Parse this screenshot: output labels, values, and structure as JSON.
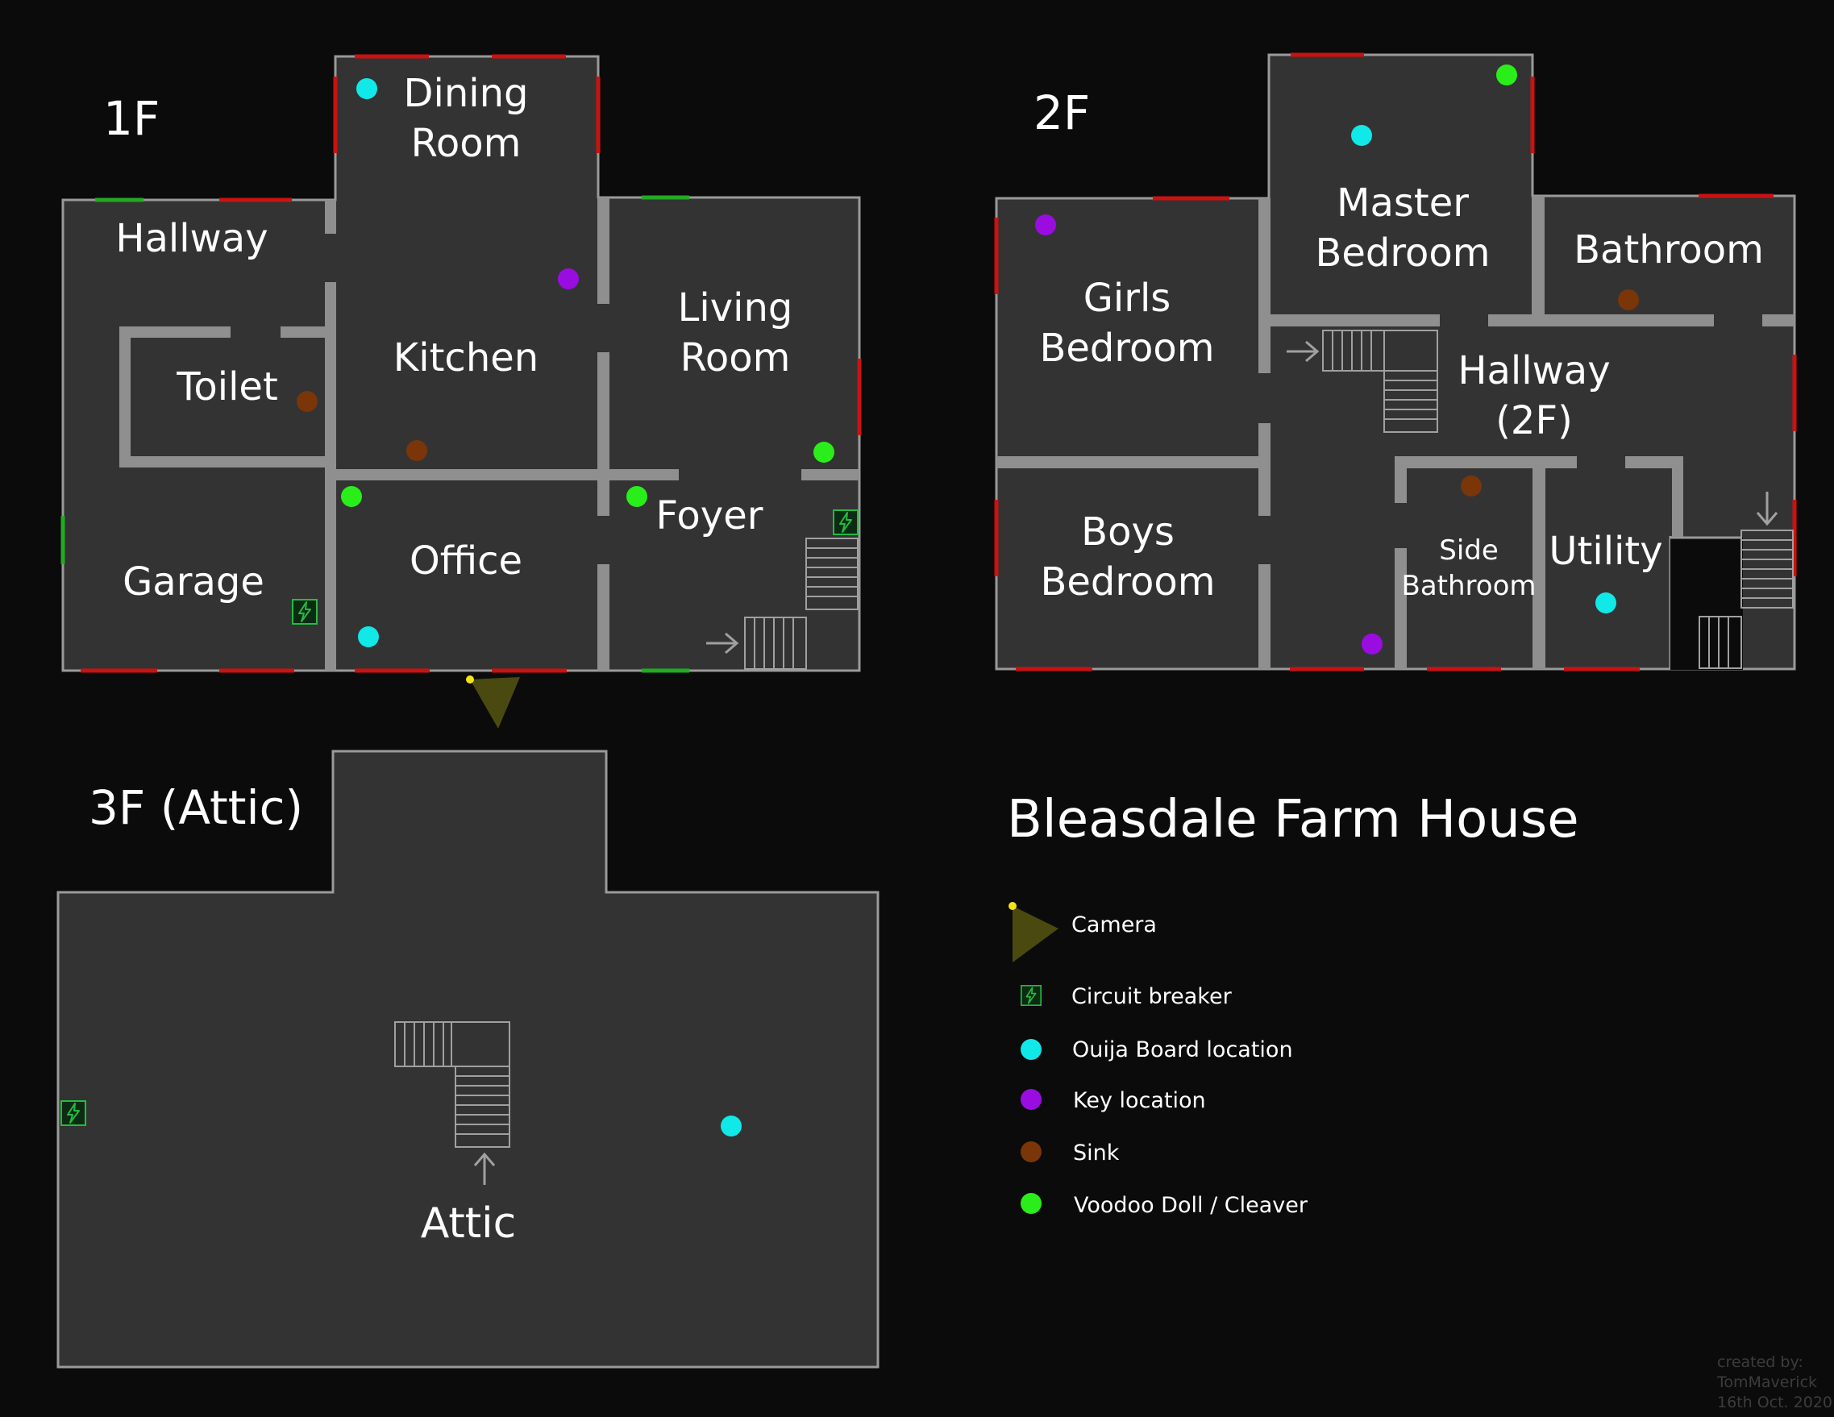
{
  "title": "Bleasdale Farm House",
  "floors": {
    "f1": "1F",
    "f2": "2F",
    "f3": "3F (Attic)"
  },
  "rooms": {
    "f1": {
      "dining_1": "Dining",
      "dining_2": "Room",
      "hallway": "Hallway",
      "toilet": "Toilet",
      "kitchen": "Kitchen",
      "living_1": "Living",
      "living_2": "Room",
      "foyer": "Foyer",
      "garage": "Garage",
      "office": "Office"
    },
    "f2": {
      "master_1": "Master",
      "master_2": "Bedroom",
      "bathroom": "Bathroom",
      "girls_1": "Girls",
      "girls_2": "Bedroom",
      "hallway_1": "Hallway",
      "hallway_2": "(2F)",
      "boys_1": "Boys",
      "boys_2": "Bedroom",
      "side_1": "Side",
      "side_2": "Bathroom",
      "utility": "Utility"
    },
    "f3": {
      "attic": "Attic"
    }
  },
  "legend": [
    {
      "key": "camera",
      "label": "Camera",
      "icon": "camera-icon"
    },
    {
      "key": "breaker",
      "label": "Circuit breaker",
      "icon": "lightning-icon"
    },
    {
      "key": "ouija",
      "label": "Ouija Board location",
      "icon": "dot-icon"
    },
    {
      "key": "key",
      "label": "Key location",
      "icon": "dot-icon"
    },
    {
      "key": "sink",
      "label": "Sink",
      "icon": "dot-icon"
    },
    {
      "key": "voodoo",
      "label": "Voodoo Doll / Cleaver",
      "icon": "dot-icon"
    }
  ],
  "credit": {
    "line1": "created by:",
    "line2": "TomMaverick",
    "line3": "16th Oct. 2020"
  },
  "colors": {
    "background": "#0b0b0b",
    "floor": "#333333",
    "wall": "#8f8f8f",
    "door": "#cc1111",
    "window": "#22aa22",
    "ouija": "#11e8e8",
    "key": "#9a0de0",
    "sink": "#7a3608",
    "voodoo": "#2aee1a",
    "camera": "#4a4a10",
    "camera_dot": "#f2e21a",
    "breaker": "#22bb44"
  }
}
